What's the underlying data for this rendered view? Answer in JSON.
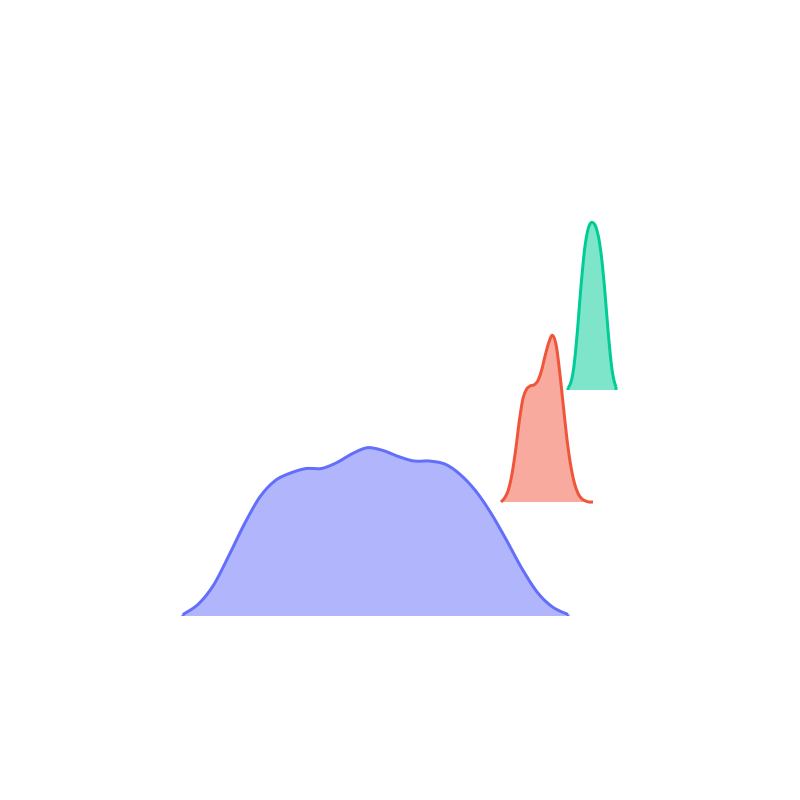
{
  "chart_data": {
    "type": "area",
    "chart_subtype": "ridgeline",
    "title": "",
    "xlabel": "",
    "ylabel": "",
    "axes_visible": false,
    "grid": false,
    "legend": "none",
    "x_range": [
      0,
      1
    ],
    "series": [
      {
        "id": "ridge-1",
        "baseline": 0,
        "stroke": "#636efa",
        "fill": "#636efa",
        "fill_opacity": 0.5,
        "x": [
          0.0,
          0.04,
          0.08,
          0.12,
          0.16,
          0.2,
          0.24,
          0.28,
          0.32,
          0.36,
          0.4,
          0.44,
          0.48,
          0.52,
          0.56,
          0.6,
          0.64,
          0.68,
          0.72,
          0.76,
          0.8,
          0.84,
          0.88,
          0.92,
          0.96,
          1.0
        ],
        "y": [
          0.01,
          0.08,
          0.21,
          0.41,
          0.62,
          0.8,
          0.91,
          0.96,
          0.99,
          0.99,
          1.03,
          1.09,
          1.13,
          1.11,
          1.07,
          1.04,
          1.04,
          1.02,
          0.95,
          0.84,
          0.69,
          0.51,
          0.32,
          0.16,
          0.06,
          0.01
        ]
      },
      {
        "id": "ridge-2",
        "baseline": 1,
        "stroke": "#ef553b",
        "fill": "#ef553b",
        "fill_opacity": 0.5,
        "x": [
          0.0,
          0.04,
          0.08,
          0.12,
          0.16,
          0.2,
          0.24,
          0.28,
          0.32,
          0.36,
          0.4,
          0.44,
          0.48,
          0.52,
          0.56,
          0.6,
          0.64,
          0.68,
          0.72,
          0.76,
          0.8,
          0.84,
          0.88,
          0.92,
          0.96,
          1.0
        ],
        "y": [
          0.0,
          0.04,
          0.12,
          0.28,
          0.52,
          0.81,
          1.03,
          1.12,
          1.15,
          1.16,
          1.2,
          1.3,
          1.45,
          1.58,
          1.65,
          1.55,
          1.27,
          0.93,
          0.6,
          0.35,
          0.18,
          0.08,
          0.03,
          0.01,
          0.0,
          0.0
        ]
      },
      {
        "id": "ridge-3",
        "baseline": 2,
        "stroke": "#00cc96",
        "fill": "#00cc96",
        "fill_opacity": 0.5,
        "x": [
          0.0,
          0.04,
          0.08,
          0.12,
          0.16,
          0.2,
          0.24,
          0.28,
          0.32,
          0.36,
          0.4,
          0.44,
          0.48,
          0.52,
          0.56,
          0.6,
          0.64,
          0.68,
          0.72,
          0.76,
          0.8,
          0.84,
          0.88,
          0.92,
          0.96,
          1.0
        ],
        "y": [
          0.02,
          0.05,
          0.11,
          0.22,
          0.39,
          0.6,
          0.84,
          1.07,
          1.27,
          1.43,
          1.54,
          1.61,
          1.64,
          1.64,
          1.62,
          1.57,
          1.49,
          1.37,
          1.21,
          1.01,
          0.78,
          0.55,
          0.35,
          0.19,
          0.09,
          0.03
        ]
      }
    ]
  }
}
